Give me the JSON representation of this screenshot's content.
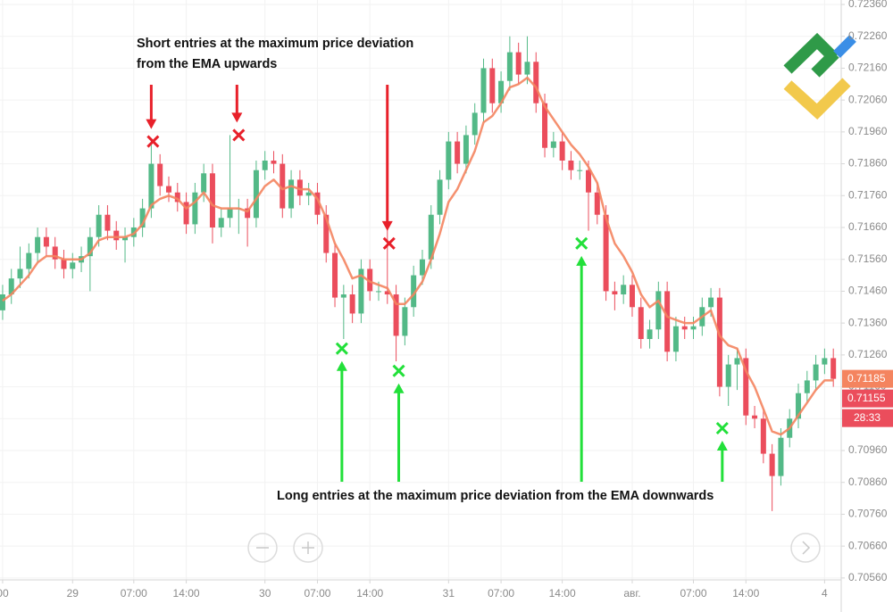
{
  "chart_data": {
    "type": "candlestick",
    "annotations": [
      {
        "lines": [
          "Short entries at the maximum price deviation",
          "from the EMA upwards"
        ]
      },
      {
        "lines": [
          "Long entries at the maximum price deviation from the EMA downwards"
        ]
      }
    ],
    "up_color": "#53b987",
    "down_color": "#eb4d5c",
    "open": [
      0.714,
      0.7145,
      0.715,
      0.7153,
      0.7158,
      0.7163,
      0.716,
      0.7156,
      0.7153,
      0.7155,
      0.7157,
      0.7163,
      0.717,
      0.7165,
      0.7162,
      0.7163,
      0.7166,
      0.7172,
      0.7186,
      0.7179,
      0.7177,
      0.7174,
      0.7167,
      0.7177,
      0.7183,
      0.7166,
      0.7169,
      0.7172,
      0.7172,
      0.7169,
      0.7184,
      0.7187,
      0.7186,
      0.7172,
      0.7181,
      0.7176,
      0.7177,
      0.717,
      0.7158,
      0.7144,
      0.7145,
      0.7139,
      0.7153,
      0.7146,
      0.7146,
      0.7145,
      0.7132,
      0.7141,
      0.7151,
      0.7156,
      0.717,
      0.7181,
      0.7193,
      0.7186,
      0.7195,
      0.7202,
      0.7216,
      0.7205,
      0.7212,
      0.7221,
      0.7214,
      0.7218,
      0.7205,
      0.7191,
      0.7193,
      0.7187,
      0.7184,
      0.7184,
      0.7177,
      0.717,
      0.7146,
      0.7145,
      0.7148,
      0.7141,
      0.7131,
      0.7134,
      0.7146,
      0.7127,
      0.7135,
      0.7134,
      0.7135,
      0.7141,
      0.7144,
      0.7116,
      0.7123,
      0.7125,
      0.7107,
      0.7106,
      0.7095,
      0.7088,
      0.71,
      0.7106,
      0.7114,
      0.7118,
      0.7123,
      0.7125
    ],
    "high": [
      0.7148,
      0.7153,
      0.716,
      0.7161,
      0.7166,
      0.7166,
      0.7163,
      0.7159,
      0.7158,
      0.716,
      0.7166,
      0.7173,
      0.7173,
      0.7168,
      0.7166,
      0.7169,
      0.7175,
      0.7194,
      0.7189,
      0.7182,
      0.718,
      0.7177,
      0.718,
      0.7186,
      0.7186,
      0.7172,
      0.7195,
      0.7175,
      0.7175,
      0.7187,
      0.719,
      0.719,
      0.7189,
      0.7184,
      0.7184,
      0.718,
      0.718,
      0.7173,
      0.7161,
      0.7148,
      0.7148,
      0.7156,
      0.7156,
      0.7149,
      0.717,
      0.7148,
      0.7144,
      0.7154,
      0.7159,
      0.7173,
      0.7184,
      0.7196,
      0.7196,
      0.7198,
      0.7205,
      0.7219,
      0.7219,
      0.7215,
      0.7226,
      0.7224,
      0.7226,
      0.7221,
      0.7208,
      0.7196,
      0.7196,
      0.719,
      0.7187,
      0.7187,
      0.718,
      0.7173,
      0.7149,
      0.7151,
      0.7151,
      0.7144,
      0.7137,
      0.7149,
      0.7149,
      0.7138,
      0.7138,
      0.7138,
      0.7144,
      0.7147,
      0.7147,
      0.7126,
      0.7128,
      0.7128,
      0.711,
      0.7109,
      0.7098,
      0.7103,
      0.7109,
      0.7117,
      0.7121,
      0.7126,
      0.7128,
      0.7128
    ],
    "low": [
      0.7137,
      0.7142,
      0.7147,
      0.715,
      0.7155,
      0.7157,
      0.7153,
      0.715,
      0.715,
      0.7152,
      0.7146,
      0.716,
      0.7162,
      0.7159,
      0.7155,
      0.716,
      0.7163,
      0.7169,
      0.7176,
      0.7174,
      0.7171,
      0.7164,
      0.7164,
      0.7174,
      0.7161,
      0.7163,
      0.7166,
      0.7164,
      0.716,
      0.7166,
      0.7181,
      0.7183,
      0.7169,
      0.7169,
      0.7173,
      0.7173,
      0.7167,
      0.7155,
      0.7141,
      0.7131,
      0.7136,
      0.7136,
      0.7143,
      0.7143,
      0.7142,
      0.7124,
      0.7129,
      0.7138,
      0.7148,
      0.7153,
      0.7167,
      0.7178,
      0.7183,
      0.7183,
      0.7192,
      0.7199,
      0.7202,
      0.7202,
      0.7209,
      0.7211,
      0.7211,
      0.7202,
      0.7188,
      0.7188,
      0.7184,
      0.7181,
      0.7181,
      0.7165,
      0.7167,
      0.7143,
      0.714,
      0.7142,
      0.7138,
      0.7128,
      0.7128,
      0.7131,
      0.7124,
      0.7124,
      0.7131,
      0.7131,
      0.7132,
      0.7138,
      0.7113,
      0.711,
      0.7115,
      0.7104,
      0.7103,
      0.7092,
      0.7077,
      0.7085,
      0.7097,
      0.7103,
      0.7111,
      0.7115,
      0.712,
      0.7116
    ],
    "close": [
      0.7145,
      0.715,
      0.7153,
      0.7158,
      0.7163,
      0.716,
      0.7156,
      0.7153,
      0.7155,
      0.7157,
      0.7163,
      0.717,
      0.7165,
      0.7162,
      0.7163,
      0.7166,
      0.7172,
      0.7186,
      0.7179,
      0.7177,
      0.7174,
      0.7167,
      0.7177,
      0.7183,
      0.7166,
      0.7169,
      0.7172,
      0.7172,
      0.7169,
      0.7184,
      0.7187,
      0.7186,
      0.7172,
      0.7181,
      0.7176,
      0.7177,
      0.717,
      0.7158,
      0.7144,
      0.7145,
      0.7139,
      0.7153,
      0.7146,
      0.7146,
      0.7145,
      0.7132,
      0.7141,
      0.7151,
      0.7156,
      0.717,
      0.7181,
      0.7193,
      0.7186,
      0.7195,
      0.7202,
      0.7216,
      0.7205,
      0.7212,
      0.7221,
      0.7214,
      0.7218,
      0.7205,
      0.7191,
      0.7193,
      0.7187,
      0.7184,
      0.7184,
      0.7177,
      0.717,
      0.7146,
      0.7145,
      0.7148,
      0.7141,
      0.7131,
      0.7134,
      0.7146,
      0.7127,
      0.7135,
      0.7134,
      0.7135,
      0.7141,
      0.7144,
      0.7116,
      0.7123,
      0.7125,
      0.7107,
      0.7106,
      0.7095,
      0.7088,
      0.71,
      0.7106,
      0.7114,
      0.7118,
      0.7123,
      0.7125,
      0.71185
    ],
    "ema": {
      "color": "#f4845f",
      "values": [
        0.7143,
        0.7145,
        0.7148,
        0.7151,
        0.7155,
        0.7157,
        0.7157,
        0.7156,
        0.7156,
        0.7156,
        0.7158,
        0.7162,
        0.7163,
        0.7163,
        0.7163,
        0.7164,
        0.7167,
        0.7173,
        0.7175,
        0.7176,
        0.7175,
        0.7172,
        0.7174,
        0.7177,
        0.7173,
        0.7172,
        0.7172,
        0.7172,
        0.7171,
        0.7175,
        0.7179,
        0.7181,
        0.7178,
        0.7179,
        0.7178,
        0.7178,
        0.7175,
        0.7169,
        0.7161,
        0.7156,
        0.715,
        0.7151,
        0.7149,
        0.7148,
        0.7147,
        0.7142,
        0.7142,
        0.7145,
        0.7149,
        0.7156,
        0.7164,
        0.7174,
        0.7178,
        0.7184,
        0.719,
        0.7199,
        0.7201,
        0.7205,
        0.721,
        0.7211,
        0.7213,
        0.721,
        0.7204,
        0.72,
        0.7196,
        0.7192,
        0.7189,
        0.7185,
        0.718,
        0.7169,
        0.7161,
        0.7157,
        0.7152,
        0.7145,
        0.7141,
        0.7143,
        0.7138,
        0.7137,
        0.7136,
        0.7136,
        0.7138,
        0.714,
        0.7132,
        0.7129,
        0.7128,
        0.7121,
        0.7116,
        0.7109,
        0.7102,
        0.7101,
        0.7103,
        0.7107,
        0.7111,
        0.7115,
        0.7118,
        0.7118
      ]
    },
    "short_entries": {
      "color": "#e8202a",
      "points": [
        {
          "x": 17.2,
          "y": 0.7193
        },
        {
          "x": 27.0,
          "y": 0.7195
        },
        {
          "x": 44.2,
          "y": 0.7161
        }
      ]
    },
    "long_entries": {
      "color": "#22e03a",
      "points": [
        {
          "x": 38.8,
          "y": 0.7128
        },
        {
          "x": 45.3,
          "y": 0.7121
        },
        {
          "x": 66.2,
          "y": 0.7161
        },
        {
          "x": 82.3,
          "y": 0.7103
        }
      ]
    },
    "price_labels": [
      {
        "value": 0.71185,
        "label": "0.71185",
        "color": "#f4845f"
      },
      {
        "value": 0.71155,
        "label": "0.71155",
        "color": "#eb4d5c"
      }
    ],
    "countdown": "28:33",
    "xlim": [
      -0.3,
      95.9
    ],
    "xticks": [
      {
        "value": 0,
        "label": "00"
      },
      {
        "value": 8,
        "label": "29"
      },
      {
        "value": 15,
        "label": "07:00"
      },
      {
        "value": 21,
        "label": "14:00"
      },
      {
        "value": 30,
        "label": "30"
      },
      {
        "value": 36,
        "label": "07:00"
      },
      {
        "value": 42,
        "label": "14:00"
      },
      {
        "value": 51,
        "label": "31"
      },
      {
        "value": 57,
        "label": "07:00"
      },
      {
        "value": 64,
        "label": "14:00"
      },
      {
        "value": 72,
        "label": "авг."
      },
      {
        "value": 79,
        "label": "07:00"
      },
      {
        "value": 85,
        "label": "14:00"
      },
      {
        "value": 94,
        "label": "4"
      }
    ],
    "ylim": [
      0.70554,
      0.72374
    ],
    "yticks": [
      {
        "value": 0.7056,
        "label": "0.70560"
      },
      {
        "value": 0.7066,
        "label": "0.70660"
      },
      {
        "value": 0.7076,
        "label": "0.70760"
      },
      {
        "value": 0.7086,
        "label": "0.70860"
      },
      {
        "value": 0.7096,
        "label": "0.70960"
      },
      {
        "value": 0.7106,
        "label": "0.71060"
      },
      {
        "value": 0.7116,
        "label": "0.71160"
      },
      {
        "value": 0.7126,
        "label": "0.71260"
      },
      {
        "value": 0.7136,
        "label": "0.71360"
      },
      {
        "value": 0.7146,
        "label": "0.71460"
      },
      {
        "value": 0.7156,
        "label": "0.71560"
      },
      {
        "value": 0.7166,
        "label": "0.71660"
      },
      {
        "value": 0.7176,
        "label": "0.71760"
      },
      {
        "value": 0.7186,
        "label": "0.71860"
      },
      {
        "value": 0.7196,
        "label": "0.71960"
      },
      {
        "value": 0.7206,
        "label": "0.72060"
      },
      {
        "value": 0.7216,
        "label": "0.72160"
      },
      {
        "value": 0.7226,
        "label": "0.72260"
      },
      {
        "value": 0.7236,
        "label": "0.72360"
      }
    ],
    "grid": true
  }
}
